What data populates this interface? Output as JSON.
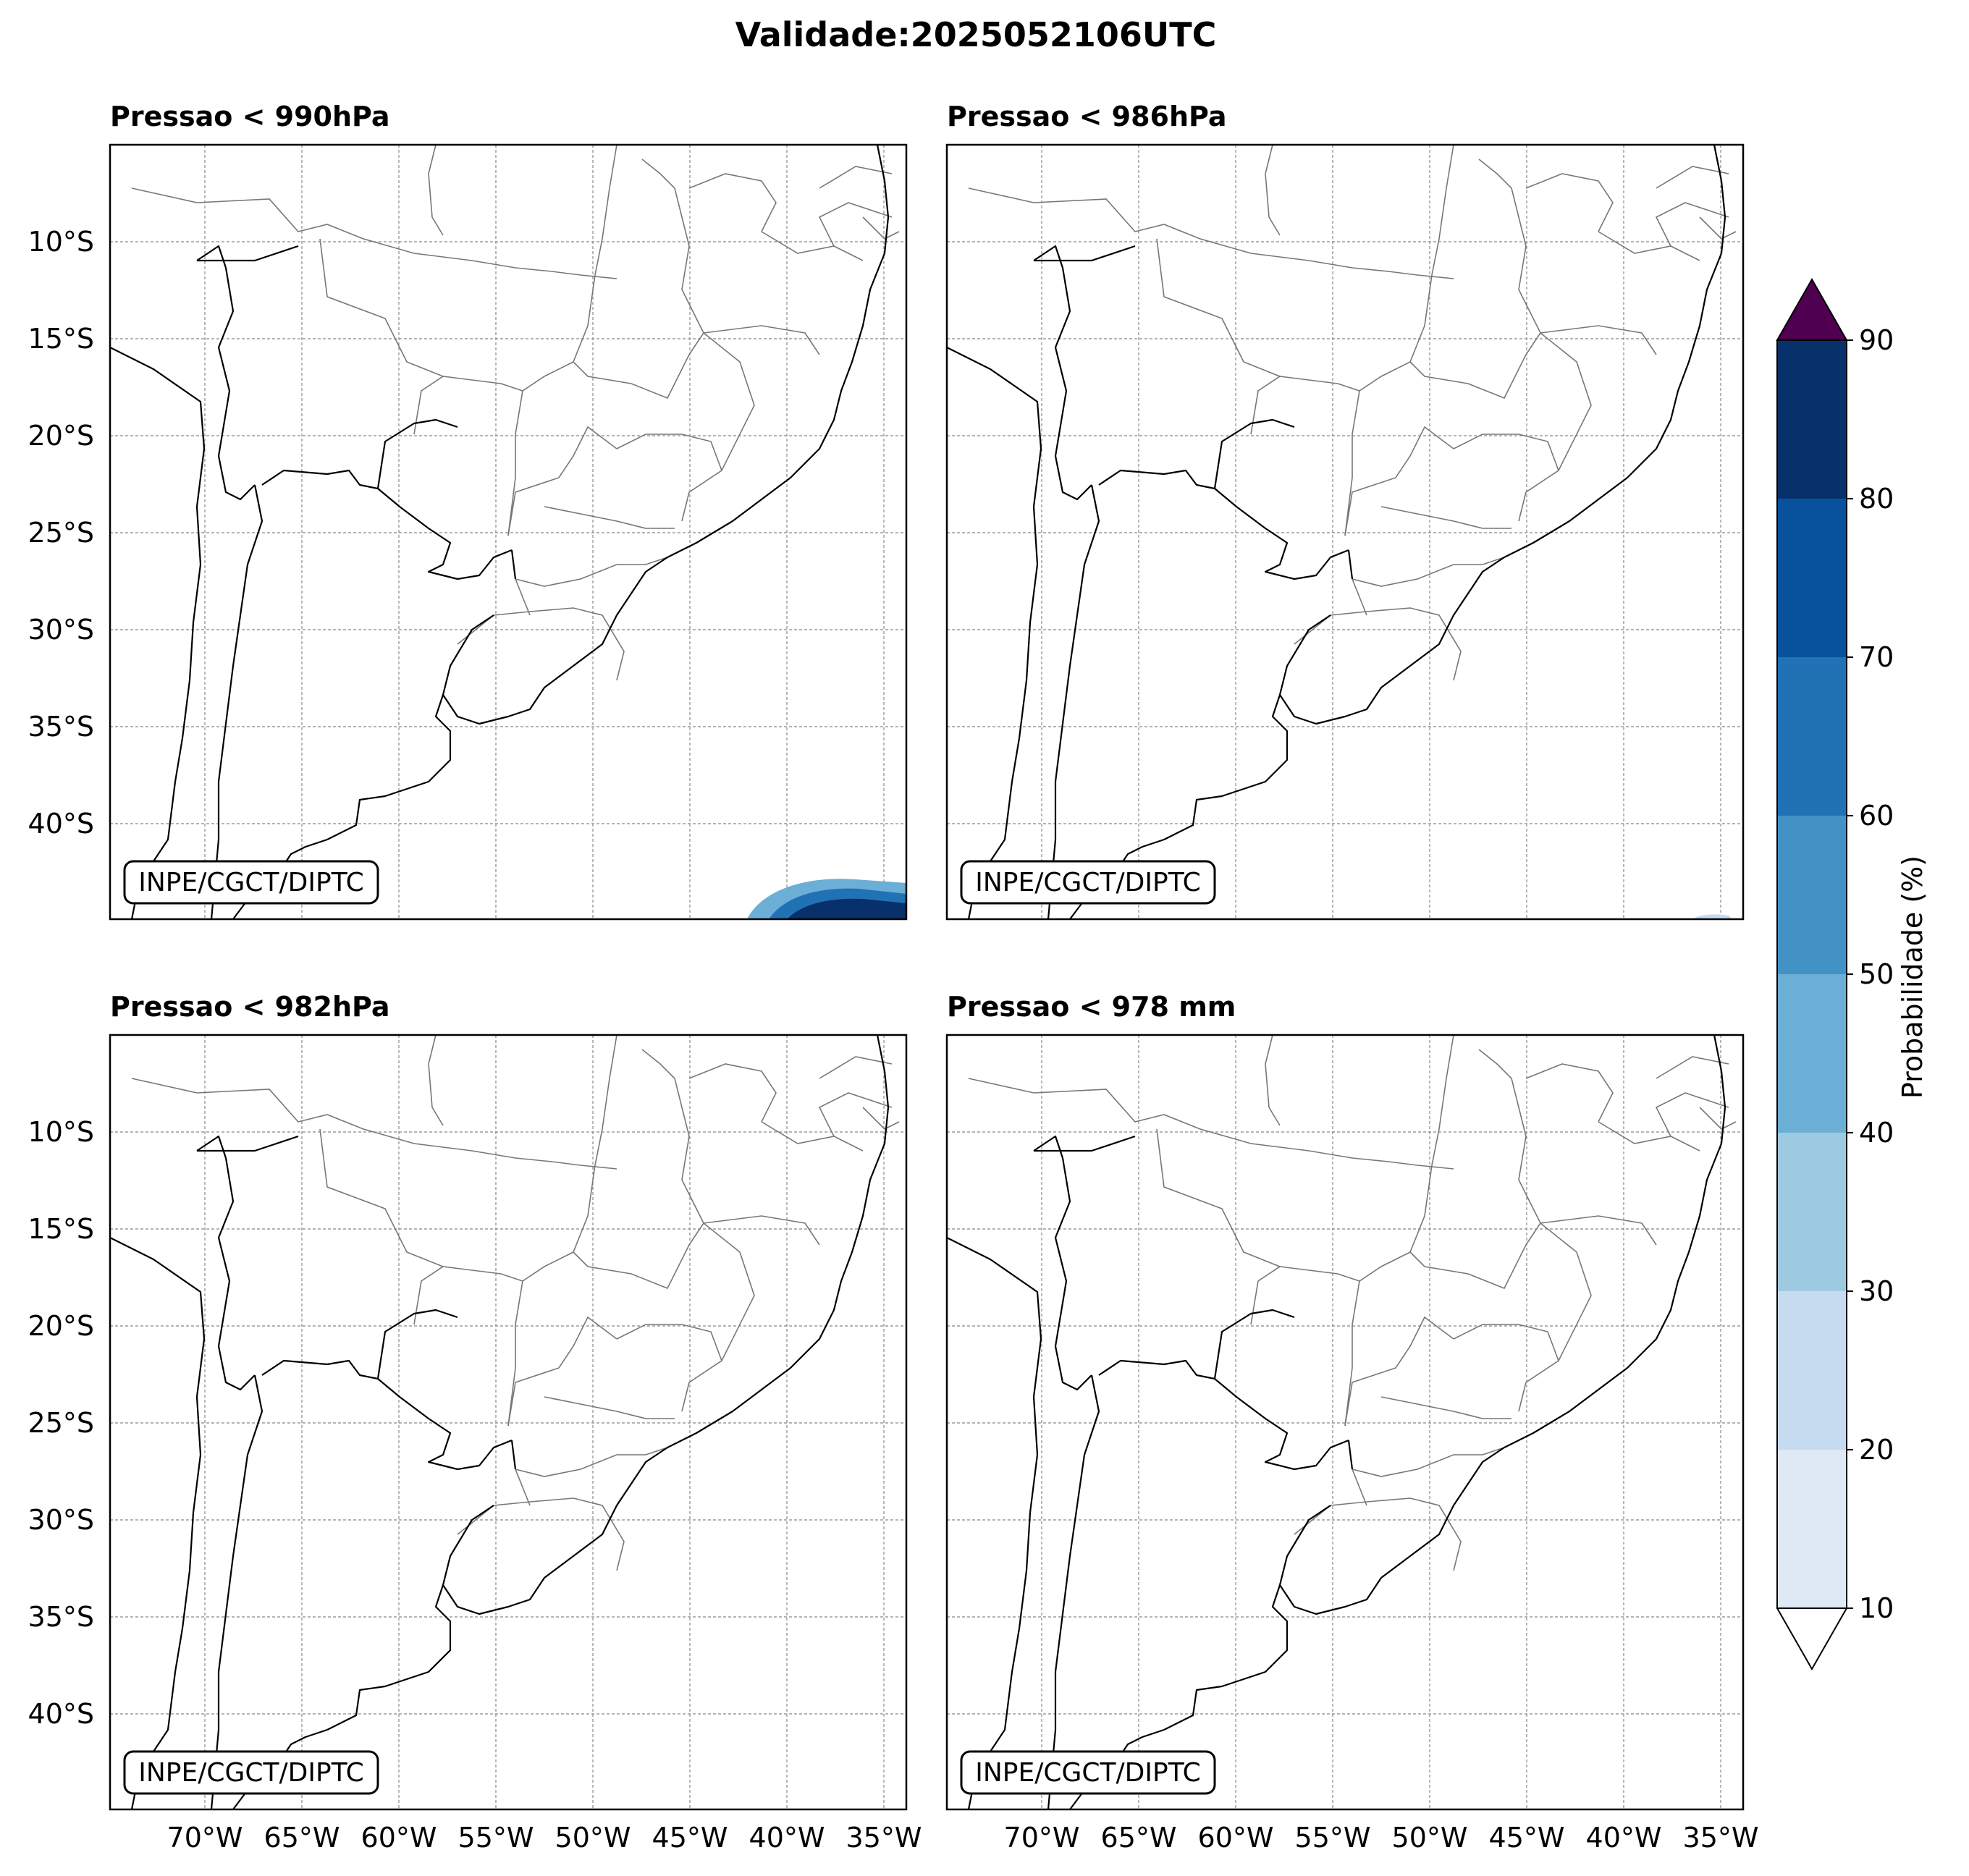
{
  "figure": {
    "title": "Validade:2025052106UTC",
    "credit": "INPE/CGCT/DIPTC"
  },
  "axes": {
    "lon_ticks": [
      "70°W",
      "65°W",
      "60°W",
      "55°W",
      "50°W",
      "45°W",
      "40°W",
      "35°W"
    ],
    "lat_ticks": [
      "10°S",
      "15°S",
      "20°S",
      "25°S",
      "30°S",
      "35°S",
      "40°S"
    ],
    "lon_values": [
      -70,
      -65,
      -60,
      -55,
      -50,
      -45,
      -40,
      -35
    ],
    "lat_values": [
      -10,
      -15,
      -20,
      -25,
      -30,
      -35,
      -40
    ],
    "lon_range": [
      -75,
      -34
    ],
    "lat_range": [
      -45,
      -5
    ]
  },
  "panels": [
    {
      "title": "Pressao < 990hPa",
      "feature": "high-probability blob near 41-34°W, 43-45°S"
    },
    {
      "title": "Pressao < 986hPa",
      "feature": "faint trace near 37°W, 45°S"
    },
    {
      "title": "Pressao < 982hPa",
      "feature": "none"
    },
    {
      "title": "Pressao < 978 mm",
      "feature": "none"
    }
  ],
  "colorbar": {
    "label": "Probabilidade (%)",
    "ticks": [
      "10",
      "20",
      "30",
      "40",
      "50",
      "60",
      "70",
      "80",
      "90"
    ],
    "levels": [
      10,
      20,
      30,
      40,
      50,
      60,
      70,
      80,
      90
    ],
    "colors": [
      "#dfe9f5",
      "#c6dbef",
      "#9ecae1",
      "#6baed6",
      "#4292c6",
      "#2171b5",
      "#08519c",
      "#08306b"
    ],
    "over_color": "#500050",
    "under_color": "#ffffff"
  },
  "chart_data": {
    "type": "heatmap",
    "title": "Validade:2025052106UTC",
    "subplots": [
      {
        "title": "Pressao < 990hPa",
        "region": {
          "lon": [
            -41,
            -34
          ],
          "lat": [
            -45,
            -43
          ]
        },
        "max_probability": 90
      },
      {
        "title": "Pressao < 986hPa",
        "region": {
          "lon": [
            -38,
            -36
          ],
          "lat": [
            -45,
            -44.8
          ]
        },
        "max_probability": 10
      },
      {
        "title": "Pressao < 982hPa",
        "region": null,
        "max_probability": 0
      },
      {
        "title": "Pressao < 978 mm",
        "region": null,
        "max_probability": 0
      }
    ],
    "xlabel": "",
    "ylabel": "",
    "colorbar_label": "Probabilidade (%)",
    "levels": [
      10,
      20,
      30,
      40,
      50,
      60,
      70,
      80,
      90
    ]
  }
}
